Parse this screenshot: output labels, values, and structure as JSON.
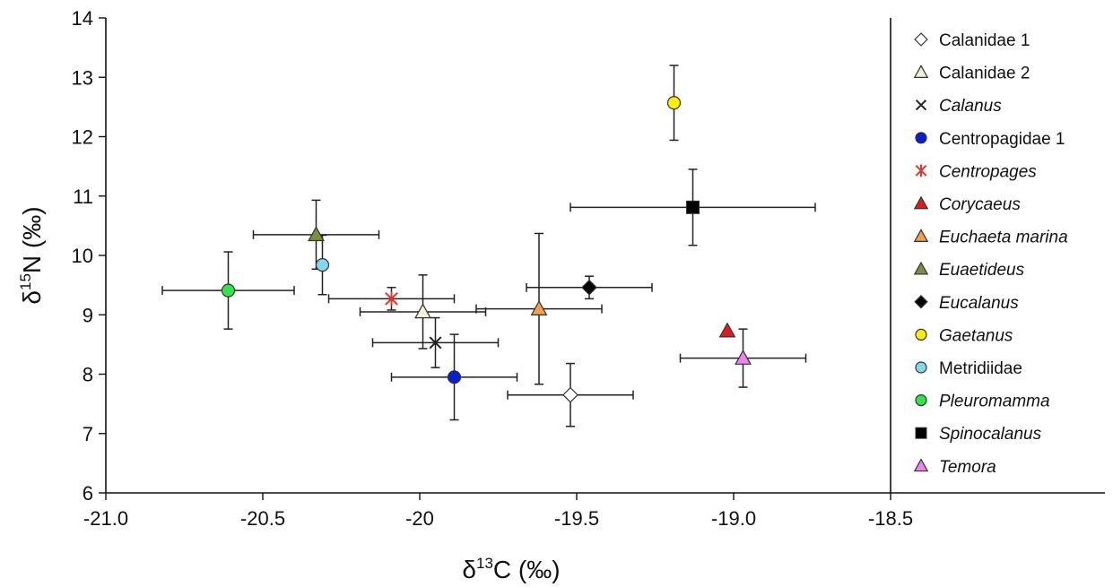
{
  "chart_data": {
    "type": "scatter",
    "title": "",
    "xlabel": "δ13C (‰)",
    "xlabel_main": "δ",
    "xlabel_sup": "13",
    "xlabel_rest": "C (‰)",
    "ylabel": "δ15N (‰)",
    "ylabel_main": "δ",
    "ylabel_sup": "15",
    "ylabel_rest": "N (‰)",
    "xlim": [
      -21.0,
      -18.5
    ],
    "ylim": [
      6,
      14
    ],
    "xticks": [
      -21.0,
      -20.5,
      -20.0,
      -19.5,
      -19.0,
      -18.5
    ],
    "xtick_labels": [
      "-21.0",
      "-20.5",
      "-20",
      "-19.5",
      "-19.0",
      "-18.5"
    ],
    "yticks": [
      6,
      7,
      8,
      9,
      10,
      11,
      12,
      13,
      14
    ],
    "ytick_labels": [
      "6",
      "7",
      "8",
      "9",
      "10",
      "11",
      "12",
      "13",
      "14"
    ],
    "grid": false,
    "legend_position": "right",
    "series": [
      {
        "name": "Calanidae 1",
        "italic": false,
        "marker": "diamond",
        "color": "#ffffff",
        "x": -19.52,
        "y": 7.65,
        "xerr": 0.2,
        "yerr": 0.53
      },
      {
        "name": "Calanidae 2",
        "italic": false,
        "marker": "triangle",
        "color": "#f2f2d8",
        "x": -19.99,
        "y": 9.05,
        "xerr": 0.2,
        "yerr": 0.62
      },
      {
        "name": "Calanus",
        "italic": true,
        "marker": "x",
        "color": "#222222",
        "x": -19.95,
        "y": 8.53,
        "xerr": 0.2,
        "yerr": 0.42
      },
      {
        "name": "Centropagidae 1",
        "italic": false,
        "marker": "circle",
        "color": "#0a1fd0",
        "x": -19.89,
        "y": 7.95,
        "xerr": 0.2,
        "yerr": 0.72
      },
      {
        "name": "Centropages",
        "italic": true,
        "marker": "asterisk",
        "color": "#e8332b",
        "x": -20.09,
        "y": 9.27,
        "xerr": 0.2,
        "yerr": 0.19
      },
      {
        "name": "Corycaeus",
        "italic": true,
        "marker": "triangle",
        "color": "#e31a1c",
        "x": -19.02,
        "y": 8.73,
        "xerr": 0,
        "yerr": 0
      },
      {
        "name": "Euchaeta marina",
        "italic": true,
        "marker": "triangle",
        "color": "#f4a04a",
        "x": -19.62,
        "y": 9.1,
        "xerr": 0.2,
        "yerr": 1.27
      },
      {
        "name": "Euaetideus",
        "italic": true,
        "marker": "triangle",
        "color": "#77913f",
        "x": -20.33,
        "y": 10.35,
        "xerr": 0.2,
        "yerr": 0.58
      },
      {
        "name": "Eucalanus",
        "italic": true,
        "marker": "diamond",
        "color": "#000000",
        "x": -19.46,
        "y": 9.46,
        "xerr": 0.2,
        "yerr": 0.19
      },
      {
        "name": "Gaetanus",
        "italic": true,
        "marker": "circle",
        "color": "#ffee00",
        "x": -19.19,
        "y": 12.57,
        "xerr": 0,
        "yerr": 0.63
      },
      {
        "name": "Metridiidae",
        "italic": false,
        "marker": "circle",
        "color": "#7fd9f0",
        "x": -20.31,
        "y": 9.84,
        "xerr": 0,
        "yerr": 0.5
      },
      {
        "name": "Pleuromamma",
        "italic": true,
        "marker": "circle",
        "color": "#33e54a",
        "x": -20.61,
        "y": 9.41,
        "xerr": 0.21,
        "yerr": 0.65
      },
      {
        "name": "Spinocalanus",
        "italic": true,
        "marker": "square",
        "color": "#000000",
        "x": -19.13,
        "y": 10.81,
        "xerr": 0.39,
        "yerr": 0.64
      },
      {
        "name": "Temora",
        "italic": true,
        "marker": "triangle",
        "color": "#ee82ee",
        "x": -18.97,
        "y": 8.27,
        "xerr": 0.2,
        "yerr": 0.49
      }
    ]
  }
}
